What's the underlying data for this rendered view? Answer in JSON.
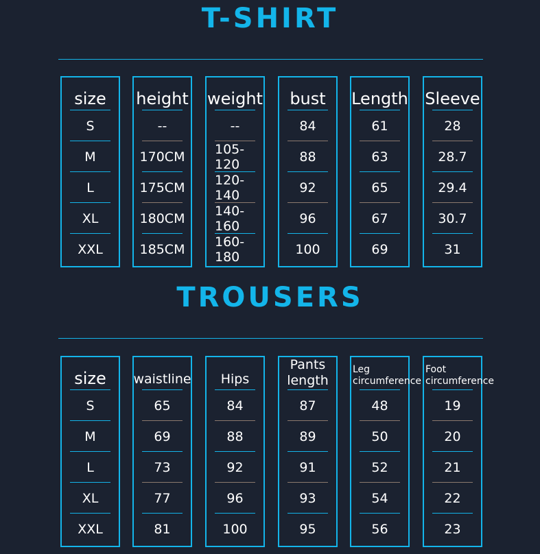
{
  "tshirt": {
    "title": "T-SHIRT",
    "columns": [
      {
        "header": "size",
        "values": [
          "S",
          "M",
          "L",
          "XL",
          "XXL"
        ]
      },
      {
        "header": "height",
        "values": [
          "--",
          "170CM",
          "175CM",
          "180CM",
          "185CM"
        ]
      },
      {
        "header": "weight",
        "values": [
          "--",
          "105-120",
          "120-140",
          "140-160",
          "160-180"
        ]
      },
      {
        "header": "bust",
        "values": [
          "84",
          "88",
          "92",
          "96",
          "100"
        ]
      },
      {
        "header": "Length",
        "values": [
          "61",
          "63",
          "65",
          "67",
          "69"
        ]
      },
      {
        "header": "Sleeve",
        "values": [
          "28",
          "28.7",
          "29.4",
          "30.7",
          "31"
        ]
      }
    ]
  },
  "trousers": {
    "title": "TROUSERS",
    "columns": [
      {
        "header": "size",
        "values": [
          "S",
          "M",
          "L",
          "XL",
          "XXL"
        ]
      },
      {
        "header": "waistline",
        "values": [
          "65",
          "69",
          "73",
          "77",
          "81"
        ]
      },
      {
        "header": "Hips",
        "values": [
          "84",
          "88",
          "92",
          "96",
          "100"
        ]
      },
      {
        "header": "Pants length",
        "values": [
          "87",
          "89",
          "91",
          "93",
          "95"
        ]
      },
      {
        "header": "Leg circumference",
        "values": [
          "48",
          "50",
          "52",
          "54",
          "56"
        ]
      },
      {
        "header": "Foot circumference",
        "values": [
          "19",
          "20",
          "21",
          "22",
          "23"
        ]
      }
    ]
  },
  "colors": {
    "accent": "#13b5ea",
    "background": "#1b2230"
  }
}
